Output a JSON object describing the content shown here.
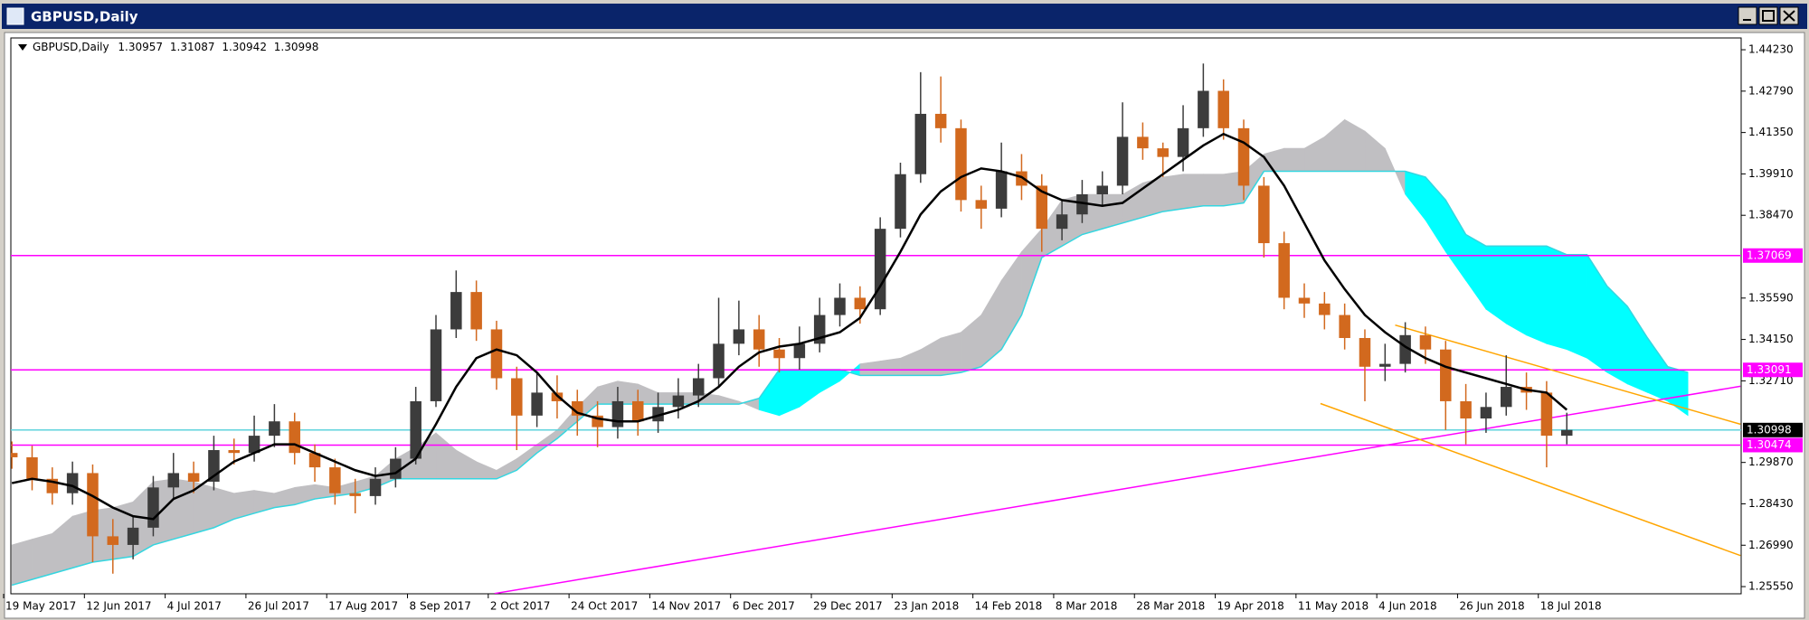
{
  "window": {
    "title": "GBPUSD,Daily"
  },
  "chart_data": {
    "type": "candlestick",
    "symbol": "GBPUSD,Daily",
    "quote": [
      1.30957,
      1.31087,
      1.30942,
      1.30998
    ],
    "categories": [
      "19 May 2017",
      null,
      null,
      null,
      "12 Jun 2017",
      null,
      null,
      null,
      "4 Jul 2017",
      null,
      null,
      null,
      "26 Jul 2017",
      null,
      null,
      null,
      "17 Aug 2017",
      null,
      null,
      null,
      "8 Sep 2017",
      null,
      null,
      null,
      "2 Oct 2017",
      null,
      null,
      null,
      "24 Oct 2017",
      null,
      null,
      null,
      "14 Nov 2017",
      null,
      null,
      null,
      "6 Dec 2017",
      null,
      null,
      null,
      "29 Dec 2017",
      null,
      null,
      null,
      "23 Jan 2018",
      null,
      null,
      null,
      "14 Feb 2018",
      null,
      null,
      null,
      "8 Mar 2018",
      null,
      null,
      null,
      "28 Mar 2018",
      null,
      null,
      null,
      "19 Apr 2018",
      null,
      null,
      null,
      "11 May 2018",
      null,
      null,
      null,
      "4 Jun 2018",
      null,
      null,
      null,
      "26 Jun 2018",
      null,
      null,
      null,
      "18 Jul 2018",
      null,
      null,
      null,
      null,
      null,
      null,
      null,
      null,
      null
    ],
    "open": [
      1.302,
      1.3005,
      1.293,
      1.288,
      1.295,
      1.273,
      1.27,
      1.276,
      1.29,
      1.295,
      1.292,
      1.303,
      1.302,
      1.308,
      1.313,
      1.302,
      1.297,
      1.288,
      1.287,
      1.293,
      1.3,
      1.32,
      1.345,
      1.358,
      1.345,
      1.328,
      1.315,
      1.323,
      1.32,
      1.315,
      1.311,
      1.32,
      1.313,
      1.318,
      1.322,
      1.328,
      1.34,
      1.345,
      1.338,
      1.335,
      1.34,
      1.35,
      1.356,
      1.352,
      1.38,
      1.399,
      1.42,
      1.415,
      1.39,
      1.387,
      1.4,
      1.395,
      1.38,
      1.385,
      1.392,
      1.395,
      1.412,
      1.408,
      1.405,
      1.415,
      1.428,
      1.415,
      1.395,
      1.375,
      1.356,
      1.354,
      1.35,
      1.342,
      1.332,
      1.333,
      1.343,
      1.338,
      1.32,
      1.314,
      1.318,
      1.325,
      1.323,
      1.308,
      null,
      null,
      null,
      null,
      null,
      null,
      null,
      null
    ],
    "high": [
      1.306,
      1.3045,
      1.297,
      1.299,
      1.298,
      1.279,
      1.28,
      1.294,
      1.302,
      1.299,
      1.308,
      1.307,
      1.315,
      1.319,
      1.316,
      1.305,
      1.3,
      1.293,
      1.297,
      1.304,
      1.325,
      1.35,
      1.3655,
      1.362,
      1.348,
      1.332,
      1.33,
      1.329,
      1.324,
      1.32,
      1.325,
      1.324,
      1.323,
      1.328,
      1.333,
      1.356,
      1.355,
      1.35,
      1.342,
      1.346,
      1.356,
      1.361,
      1.36,
      1.384,
      1.403,
      1.4345,
      1.433,
      1.418,
      1.395,
      1.41,
      1.406,
      1.399,
      1.39,
      1.397,
      1.4,
      1.424,
      1.417,
      1.41,
      1.423,
      1.4375,
      1.432,
      1.418,
      1.398,
      1.379,
      1.361,
      1.358,
      1.354,
      1.345,
      1.34,
      1.3475,
      1.346,
      1.341,
      1.326,
      1.323,
      1.336,
      1.33,
      1.327,
      1.316,
      null,
      null,
      null,
      null,
      null,
      null,
      null,
      null
    ],
    "low": [
      1.2965,
      1.289,
      1.284,
      1.284,
      1.264,
      1.26,
      1.265,
      1.273,
      1.286,
      1.288,
      1.289,
      1.298,
      1.299,
      1.304,
      1.298,
      1.292,
      1.284,
      1.281,
      1.284,
      1.29,
      1.298,
      1.318,
      1.342,
      1.341,
      1.324,
      1.303,
      1.311,
      1.314,
      1.308,
      1.304,
      1.307,
      1.308,
      1.309,
      1.314,
      1.318,
      1.325,
      1.336,
      1.332,
      1.33,
      1.331,
      1.337,
      1.346,
      1.347,
      1.35,
      1.377,
      1.396,
      1.41,
      1.386,
      1.38,
      1.384,
      1.39,
      1.372,
      1.376,
      1.382,
      1.388,
      1.392,
      1.404,
      1.398,
      1.4,
      1.412,
      1.411,
      1.39,
      1.37,
      1.352,
      1.349,
      1.345,
      1.338,
      1.32,
      1.327,
      1.33,
      1.333,
      1.31,
      1.305,
      1.309,
      1.315,
      1.317,
      1.297,
      1.305,
      null,
      null,
      null,
      null,
      null,
      null,
      null,
      null
    ],
    "close": [
      1.3005,
      1.293,
      1.288,
      1.295,
      1.273,
      1.27,
      1.276,
      1.29,
      1.295,
      1.292,
      1.303,
      1.302,
      1.308,
      1.313,
      1.302,
      1.297,
      1.288,
      1.287,
      1.293,
      1.3,
      1.32,
      1.345,
      1.358,
      1.345,
      1.328,
      1.315,
      1.323,
      1.32,
      1.315,
      1.311,
      1.32,
      1.313,
      1.318,
      1.322,
      1.328,
      1.34,
      1.345,
      1.338,
      1.335,
      1.34,
      1.35,
      1.356,
      1.352,
      1.38,
      1.399,
      1.42,
      1.415,
      1.39,
      1.387,
      1.4,
      1.395,
      1.38,
      1.385,
      1.392,
      1.395,
      1.412,
      1.408,
      1.405,
      1.415,
      1.428,
      1.415,
      1.395,
      1.375,
      1.356,
      1.354,
      1.35,
      1.342,
      1.332,
      1.333,
      1.343,
      1.338,
      1.32,
      1.314,
      1.318,
      1.325,
      1.323,
      1.308,
      1.31,
      null,
      null,
      null,
      null,
      null,
      null,
      null,
      null
    ],
    "ma": [
      1.2915,
      1.293,
      1.292,
      1.2905,
      1.287,
      1.283,
      1.28,
      1.279,
      1.286,
      1.289,
      1.294,
      1.299,
      1.302,
      1.305,
      1.305,
      1.302,
      1.299,
      1.296,
      1.294,
      1.295,
      1.3,
      1.312,
      1.325,
      1.335,
      1.338,
      1.336,
      1.33,
      1.322,
      1.316,
      1.314,
      1.313,
      1.313,
      1.315,
      1.317,
      1.32,
      1.325,
      1.332,
      1.337,
      1.339,
      1.34,
      1.342,
      1.344,
      1.349,
      1.36,
      1.372,
      1.385,
      1.393,
      1.398,
      1.401,
      1.4,
      1.398,
      1.393,
      1.39,
      1.389,
      1.388,
      1.389,
      1.394,
      1.399,
      1.404,
      1.409,
      1.413,
      1.41,
      1.405,
      1.395,
      1.382,
      1.369,
      1.359,
      1.35,
      1.344,
      1.339,
      1.335,
      1.332,
      1.33,
      1.328,
      1.326,
      1.324,
      1.323,
      1.317,
      null,
      null,
      null,
      null,
      null,
      null,
      null,
      null
    ],
    "span_a": [
      1.27,
      1.272,
      1.274,
      1.28,
      1.282,
      1.283,
      1.285,
      1.292,
      1.293,
      1.292,
      1.29,
      1.288,
      1.289,
      1.288,
      1.29,
      1.291,
      1.29,
      1.292,
      1.294,
      1.3,
      1.304,
      1.309,
      1.303,
      1.299,
      1.296,
      1.3,
      1.305,
      1.31,
      1.318,
      1.325,
      1.327,
      1.326,
      1.323,
      1.323,
      1.323,
      1.322,
      1.32,
      1.317,
      1.315,
      1.318,
      1.323,
      1.327,
      1.333,
      1.334,
      1.335,
      1.338,
      1.342,
      1.344,
      1.35,
      1.362,
      1.372,
      1.38,
      1.39,
      1.392,
      1.392,
      1.392,
      1.396,
      1.398,
      1.399,
      1.399,
      1.399,
      1.4,
      1.406,
      1.408,
      1.408,
      1.412,
      1.418,
      1.414,
      1.408,
      1.392,
      1.383,
      1.372,
      1.362,
      1.352,
      1.347,
      1.343,
      1.34,
      1.338,
      1.335,
      1.33,
      1.326,
      1.323,
      1.32,
      1.315,
      null,
      null
    ],
    "span_b": [
      1.256,
      1.258,
      1.26,
      1.262,
      1.264,
      1.265,
      1.266,
      1.27,
      1.272,
      1.274,
      1.276,
      1.279,
      1.281,
      1.283,
      1.284,
      1.286,
      1.287,
      1.288,
      1.29,
      1.293,
      1.293,
      1.293,
      1.293,
      1.293,
      1.293,
      1.296,
      1.302,
      1.307,
      1.313,
      1.319,
      1.319,
      1.319,
      1.319,
      1.319,
      1.319,
      1.319,
      1.319,
      1.321,
      1.331,
      1.331,
      1.331,
      1.331,
      1.329,
      1.329,
      1.329,
      1.329,
      1.329,
      1.33,
      1.332,
      1.338,
      1.35,
      1.37,
      1.374,
      1.378,
      1.38,
      1.382,
      1.384,
      1.386,
      1.387,
      1.388,
      1.388,
      1.389,
      1.4,
      1.4,
      1.4,
      1.4,
      1.4,
      1.4,
      1.4,
      1.4,
      1.398,
      1.39,
      1.378,
      1.374,
      1.374,
      1.374,
      1.374,
      1.371,
      1.371,
      1.36,
      1.353,
      1.342,
      1.332,
      1.33,
      null,
      null
    ],
    "up_color": "#3c3c3c",
    "down_color": "#d2691e",
    "ma_color": "#000000",
    "cloud_up_color": "#c0bfc2",
    "cloud_down_color": "#00ffff",
    "span_b_line_color": "#34d6e0",
    "ylim": [
      1.253,
      1.4464
    ],
    "yticks": [
      {
        "value": 1.4423,
        "label": "1.44230"
      },
      {
        "value": 1.4279,
        "label": "1.42790"
      },
      {
        "value": 1.4135,
        "label": "1.41350"
      },
      {
        "value": 1.3991,
        "label": "1.39910"
      },
      {
        "value": 1.3847,
        "label": "1.38470"
      },
      {
        "value": 1.3559,
        "label": "1.35590"
      },
      {
        "value": 1.3415,
        "label": "1.34150"
      },
      {
        "value": 1.3271,
        "label": "1.32710"
      },
      {
        "value": 1.2987,
        "label": "1.29870"
      },
      {
        "value": 1.2843,
        "label": "1.28430"
      },
      {
        "value": 1.2699,
        "label": "1.26990"
      },
      {
        "value": 1.2555,
        "label": "1.25550"
      }
    ],
    "hlines": [
      {
        "value": 1.37069,
        "color": "#ff00ff"
      },
      {
        "value": 1.33091,
        "color": "#ff00ff"
      },
      {
        "value": 1.30998,
        "color": "#5fd3dc",
        "label_color": "#000000"
      },
      {
        "value": 1.30474,
        "color": "#ff00ff"
      }
    ],
    "trendlines": [
      {
        "color": "#ff00ff",
        "x": [
          23.9,
          85.6
        ],
        "y": [
          1.2531,
          1.3252
        ]
      },
      {
        "color": "#ffa500",
        "x": [
          68.5,
          85.6
        ],
        "y": [
          1.3465,
          1.312
        ]
      },
      {
        "color": "#ffa500",
        "x": [
          64.8,
          85.6
        ],
        "y": [
          1.3192,
          1.2663
        ]
      }
    ]
  }
}
